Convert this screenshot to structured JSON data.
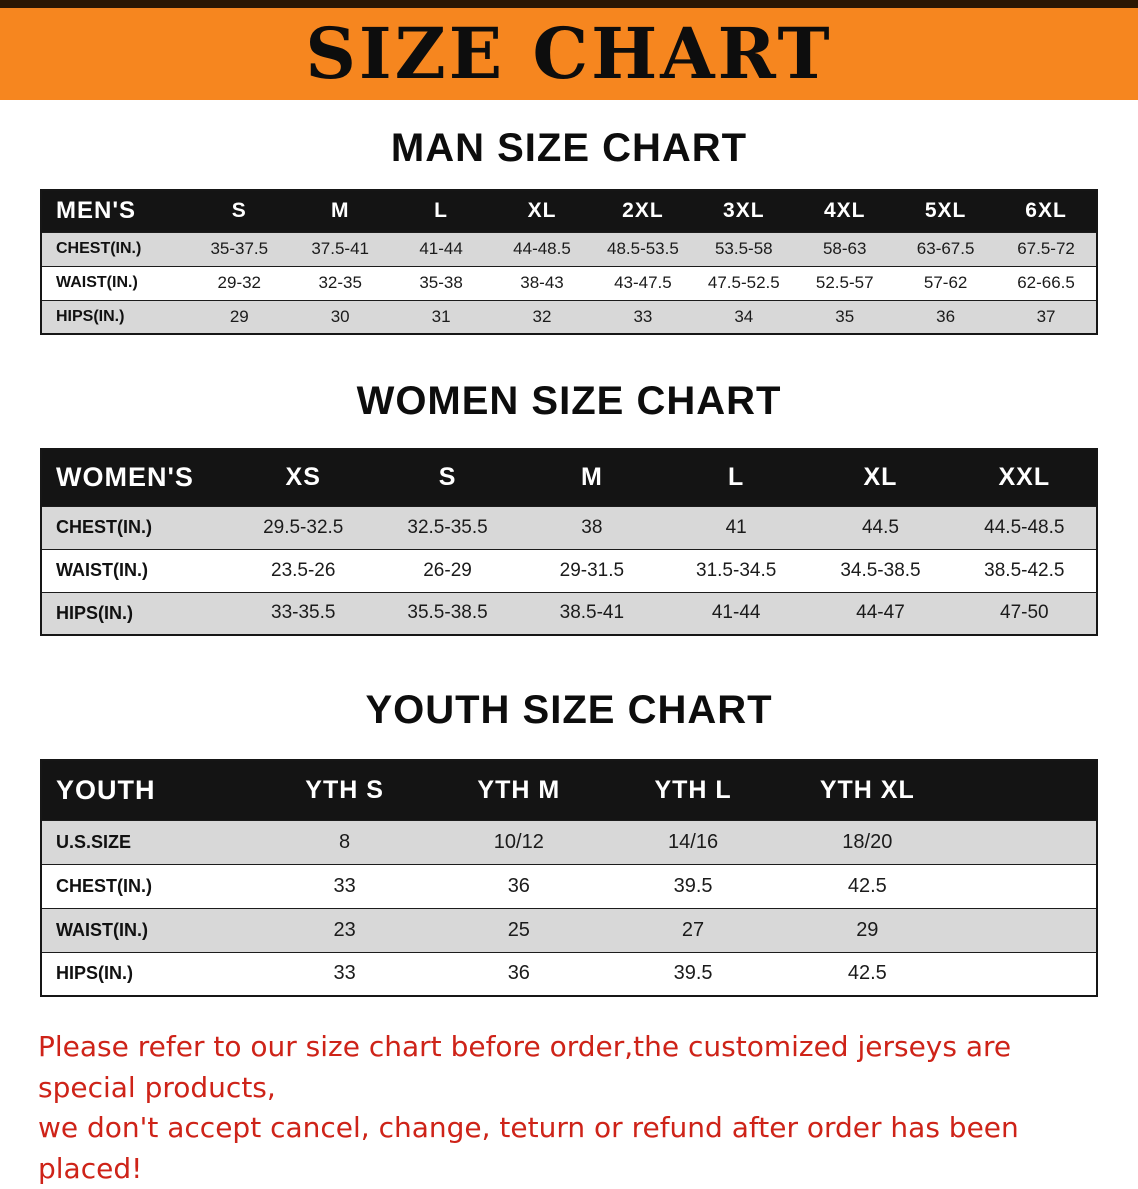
{
  "banner": {
    "title": "SIZE CHART"
  },
  "theme": {
    "banner_bg": "#f6861f",
    "table_header_bg": "#141414",
    "row_stripe": "#d8d8d8",
    "notice_color": "#ce2318"
  },
  "chart_data": [
    {
      "type": "table",
      "title": "MAN SIZE CHART",
      "columns": [
        "MEN'S",
        "S",
        "M",
        "L",
        "XL",
        "2XL",
        "3XL",
        "4XL",
        "5XL",
        "6XL"
      ],
      "rows": [
        [
          "CHEST(IN.)",
          "35-37.5",
          "37.5-41",
          "41-44",
          "44-48.5",
          "48.5-53.5",
          "53.5-58",
          "58-63",
          "63-67.5",
          "67.5-72"
        ],
        [
          "WAIST(IN.)",
          "29-32",
          "32-35",
          "35-38",
          "38-43",
          "43-47.5",
          "47.5-52.5",
          "52.5-57",
          "57-62",
          "62-66.5"
        ],
        [
          "HIPS(IN.)",
          "29",
          "30",
          "31",
          "32",
          "33",
          "34",
          "35",
          "36",
          "37"
        ]
      ]
    },
    {
      "type": "table",
      "title": "WOMEN SIZE CHART",
      "columns": [
        "WOMEN'S",
        "XS",
        "S",
        "M",
        "L",
        "XL",
        "XXL"
      ],
      "rows": [
        [
          "CHEST(IN.)",
          "29.5-32.5",
          "32.5-35.5",
          "38",
          "41",
          "44.5",
          "44.5-48.5"
        ],
        [
          "WAIST(IN.)",
          "23.5-26",
          "26-29",
          "29-31.5",
          "31.5-34.5",
          "34.5-38.5",
          "38.5-42.5"
        ],
        [
          "HIPS(IN.)",
          "33-35.5",
          "35.5-38.5",
          "38.5-41",
          "41-44",
          "44-47",
          "47-50"
        ]
      ]
    },
    {
      "type": "table",
      "title": "YOUTH SIZE CHART",
      "columns": [
        "YOUTH",
        "YTH S",
        "YTH M",
        "YTH L",
        "YTH XL"
      ],
      "rows": [
        [
          "U.S.SIZE",
          "8",
          "10/12",
          "14/16",
          "18/20"
        ],
        [
          "CHEST(IN.)",
          "33",
          "36",
          "39.5",
          "42.5"
        ],
        [
          "WAIST(IN.)",
          "23",
          "25",
          "27",
          "29"
        ],
        [
          "HIPS(IN.)",
          "33",
          "36",
          "39.5",
          "42.5"
        ]
      ]
    }
  ],
  "footer": {
    "line1": "Please refer to our size chart before order,the customized jerseys are special products,",
    "line2": "we don't accept cancel, change, teturn or refund after order has been placed!"
  }
}
